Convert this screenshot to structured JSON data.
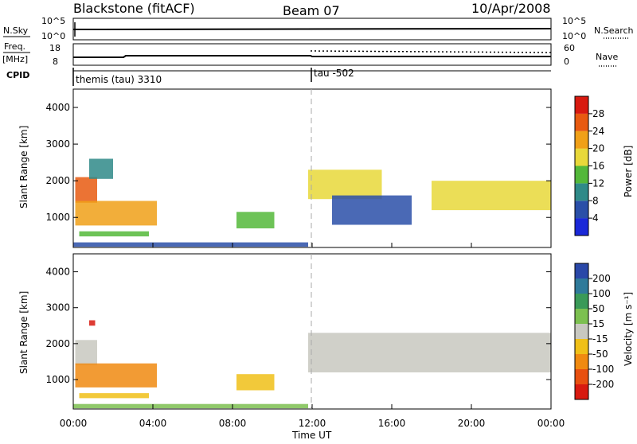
{
  "header": {
    "station": "Blackstone (fitACF)",
    "beam": "Beam 07",
    "date": "10/Apr/2008"
  },
  "strip_labels": {
    "nsky": "N.Sky",
    "nsky_ticks": [
      "10^5",
      "10^0"
    ],
    "nsearch": "N.Search",
    "freq_top": "Freq.",
    "freq_unit": "[MHz]",
    "freq_ticks": [
      "18",
      "8"
    ],
    "nave": "Nave",
    "nave_ticks": [
      "60",
      "0"
    ],
    "cpid": "CPID"
  },
  "cpid_segments": [
    {
      "label": "themis (tau) 3310",
      "start_hour": 0
    },
    {
      "label": "tau -502",
      "start_hour": 12
    }
  ],
  "axes": {
    "ylabel": "Slant Range [km]",
    "xlabel": "Time UT",
    "y_ticks": [
      1000,
      2000,
      3000,
      4000
    ],
    "x_ticks": [
      "00:00",
      "04:00",
      "08:00",
      "12:00",
      "16:00",
      "20:00",
      "00:00"
    ]
  },
  "power_colorbar": {
    "label": "Power [dB]",
    "ticks": [
      "4",
      "8",
      "12",
      "16",
      "20",
      "24",
      "28"
    ],
    "colors": [
      "#1a28d8",
      "#2a4fa8",
      "#2f8a88",
      "#53b83a",
      "#e8d83a",
      "#f0a018",
      "#e85a10",
      "#d81a10"
    ]
  },
  "velocity_colorbar": {
    "label": "Velocity [m s⁻¹]",
    "ticks": [
      "200",
      "100",
      "50",
      "15",
      "-15",
      "-50",
      "-100",
      "-200"
    ],
    "colors": [
      "#2a48a8",
      "#2f7a9a",
      "#3a9a58",
      "#7cc050",
      "#c8c8c0",
      "#f0c018",
      "#f08a10",
      "#e85010",
      "#d81a10"
    ]
  },
  "chart_data": [
    {
      "type": "heatmap",
      "title": "Power",
      "xlabel": "Time UT",
      "ylabel": "Slant Range [km]",
      "xlim": [
        0,
        24
      ],
      "ylim": [
        180,
        4500
      ],
      "zlabel": "Power [dB]",
      "zlim": [
        0,
        32
      ],
      "echo_regions": [
        {
          "t0": 0.1,
          "t1": 1.2,
          "r0": 1400,
          "r1": 2100,
          "power": 24
        },
        {
          "t0": 0.1,
          "t1": 4.2,
          "r0": 780,
          "r1": 1450,
          "power": 22
        },
        {
          "t0": 0.3,
          "t1": 3.8,
          "r0": 480,
          "r1": 620,
          "power": 14
        },
        {
          "t0": 0.8,
          "t1": 2.0,
          "r0": 2050,
          "r1": 2600,
          "power": 10
        },
        {
          "t0": 0.0,
          "t1": 11.8,
          "r0": 200,
          "r1": 320,
          "power": 5
        },
        {
          "t0": 8.2,
          "t1": 10.1,
          "r0": 700,
          "r1": 1150,
          "power": 12
        },
        {
          "t0": 11.8,
          "t1": 15.5,
          "r0": 1500,
          "r1": 2300,
          "power": 18
        },
        {
          "t0": 13.0,
          "t1": 17.0,
          "r0": 800,
          "r1": 1600,
          "power": 6
        },
        {
          "t0": 18.0,
          "t1": 24.0,
          "r0": 1200,
          "r1": 2000,
          "power": 18
        }
      ]
    },
    {
      "type": "heatmap",
      "title": "Velocity",
      "xlabel": "Time UT",
      "ylabel": "Slant Range [km]",
      "xlim": [
        0,
        24
      ],
      "ylim": [
        180,
        4500
      ],
      "zlabel": "Velocity [m s⁻¹]",
      "zlim": [
        -200,
        200
      ],
      "echo_regions": [
        {
          "t0": 0.1,
          "t1": 1.2,
          "r0": 1400,
          "r1": 2100,
          "velocity": -20
        },
        {
          "t0": 0.1,
          "t1": 4.2,
          "r0": 780,
          "r1": 1450,
          "velocity": -70
        },
        {
          "t0": 0.3,
          "t1": 3.8,
          "r0": 480,
          "r1": 620,
          "velocity": -40
        },
        {
          "t0": 0.8,
          "t1": 1.1,
          "r0": 2500,
          "r1": 2650,
          "velocity": -200
        },
        {
          "t0": 0.0,
          "t1": 11.8,
          "r0": 200,
          "r1": 320,
          "velocity": 40
        },
        {
          "t0": 8.2,
          "t1": 10.1,
          "r0": 700,
          "r1": 1150,
          "velocity": -30
        },
        {
          "t0": 11.8,
          "t1": 24.0,
          "r0": 1200,
          "r1": 2300,
          "velocity": 0
        }
      ]
    }
  ]
}
